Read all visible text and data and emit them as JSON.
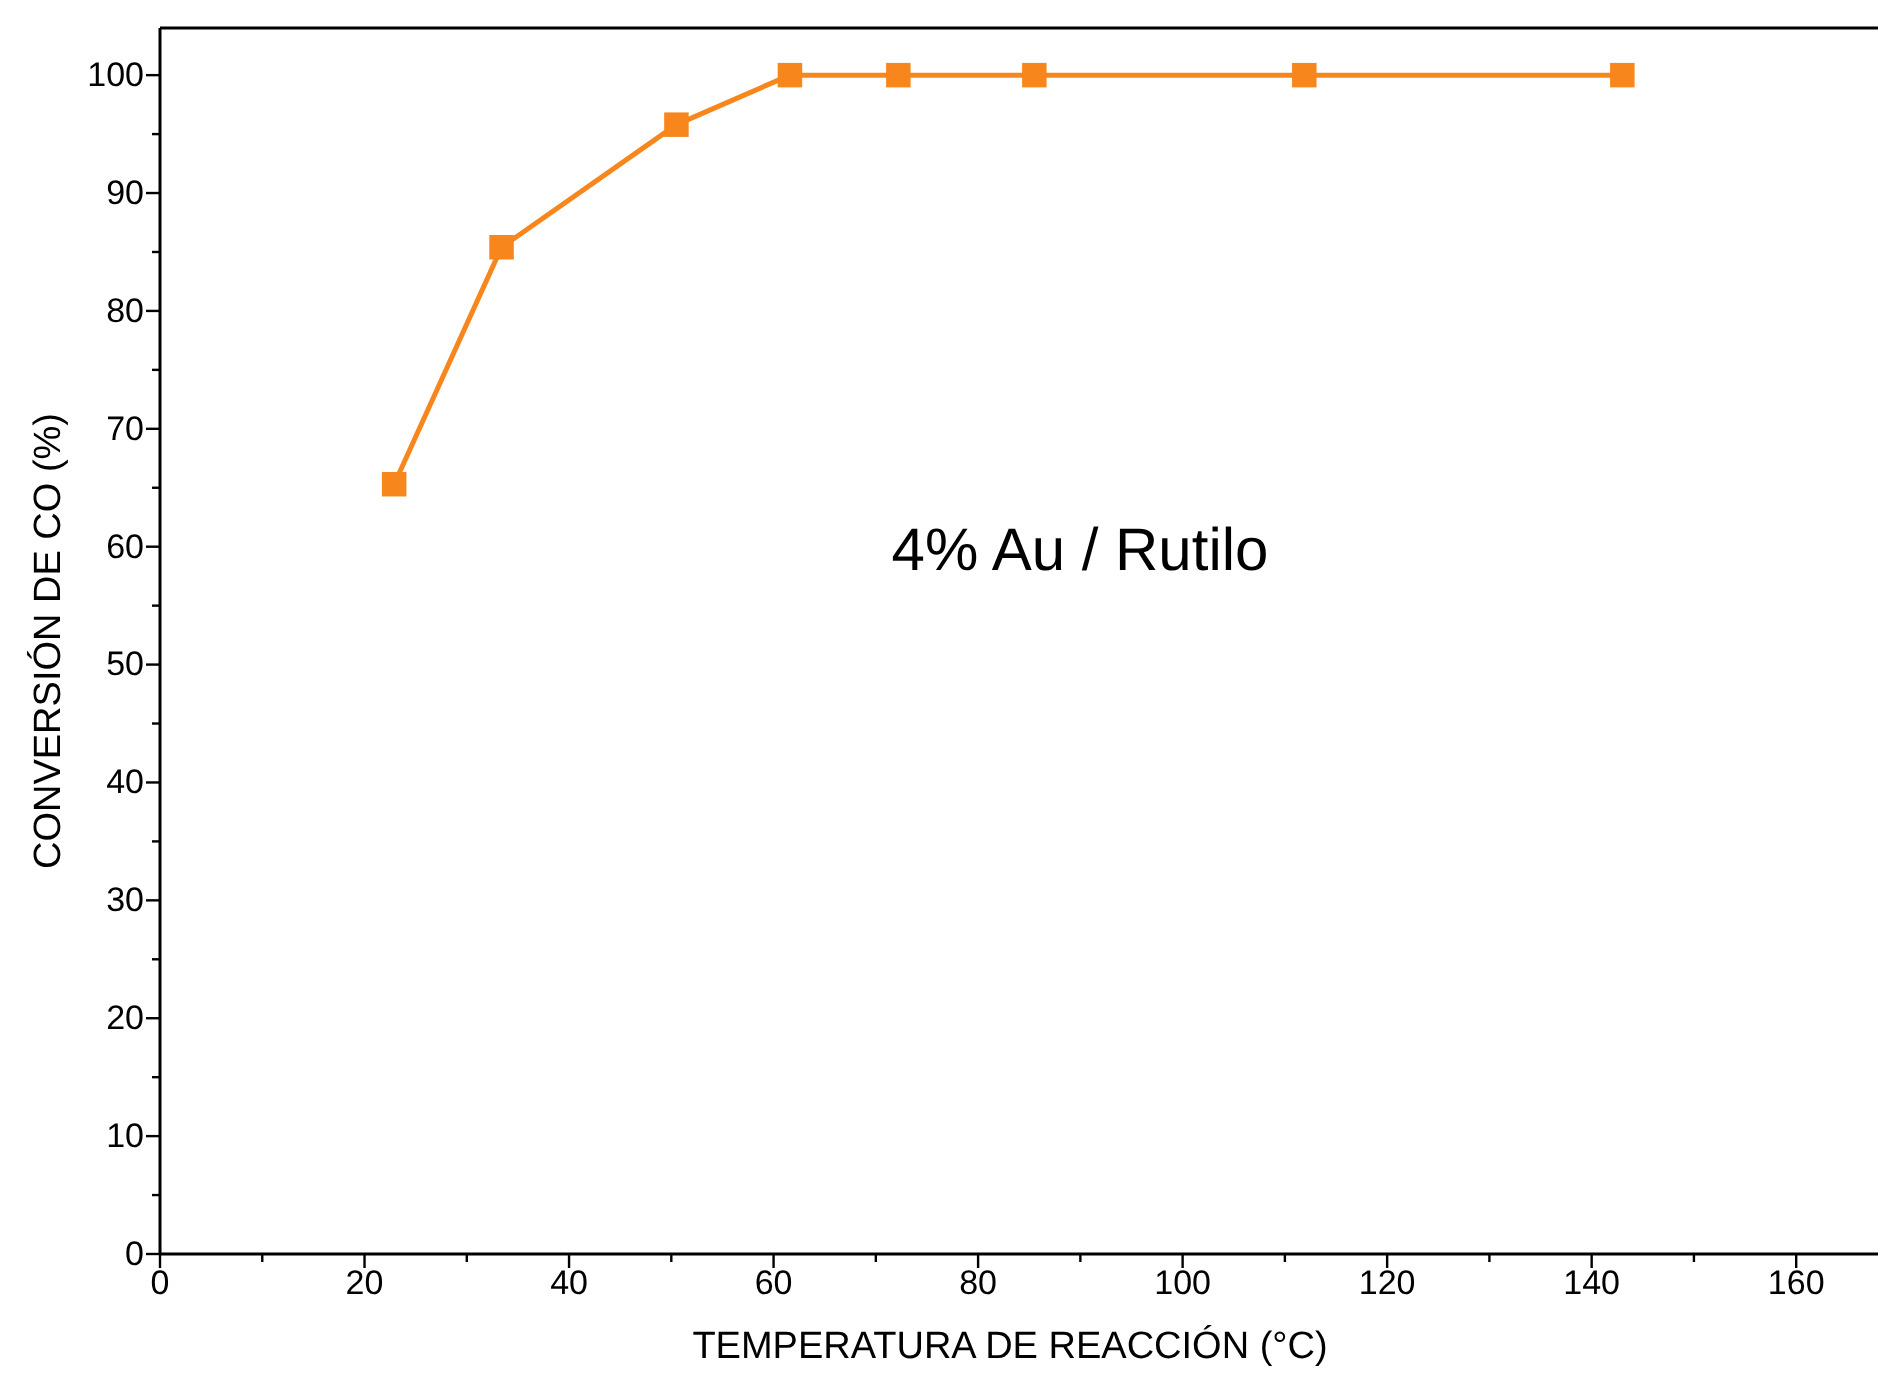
{
  "chart_data": {
    "type": "line",
    "xlabel": "TEMPERATURA DE REACCIÓN (°C)",
    "ylabel": "CONVERSIÓN DE CO (%)",
    "annotations": [
      "4% Au / Rutilo"
    ],
    "xlim": [
      0,
      168
    ],
    "ylim": [
      0,
      104
    ],
    "xticks": [
      0,
      {
        "value": 10,
        "label": null
      },
      20,
      {
        "value": 30,
        "label": null
      },
      40,
      {
        "value": 50,
        "label": null
      },
      60,
      {
        "value": 70,
        "label": null
      },
      80,
      {
        "value": 90,
        "label": null
      },
      100,
      {
        "value": 110,
        "label": null
      },
      120,
      {
        "value": 130,
        "label": null
      },
      140,
      {
        "value": 150,
        "label": null
      },
      160
    ],
    "yticks": [
      0,
      {
        "value": 5,
        "label": null
      },
      10,
      {
        "value": 15,
        "label": null
      },
      20,
      {
        "value": 25,
        "label": null
      },
      30,
      {
        "value": 35,
        "label": null
      },
      40,
      {
        "value": 45,
        "label": null
      },
      50,
      {
        "value": 55,
        "label": null
      },
      60,
      {
        "value": 65,
        "label": null
      },
      70,
      {
        "value": 75,
        "label": null
      },
      80,
      {
        "value": 85,
        "label": null
      },
      90,
      {
        "value": 95,
        "label": null
      },
      100
    ],
    "x": [
      22.9,
      33.4,
      50.5,
      61.6,
      72.2,
      85.5,
      111.9,
      143
    ],
    "series": [
      {
        "color": "#f7861c",
        "values": [
          65.3,
          85.4,
          95.8,
          100,
          100,
          100,
          100,
          100
        ]
      }
    ],
    "marker": "square",
    "line_style": "solid"
  }
}
